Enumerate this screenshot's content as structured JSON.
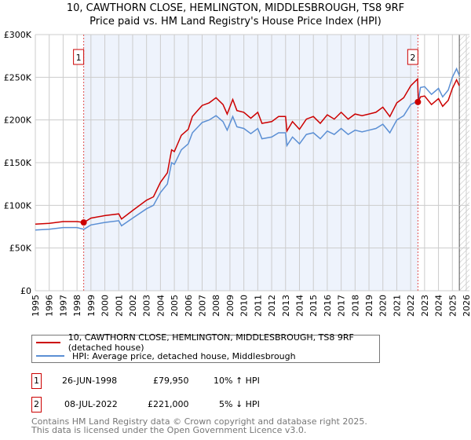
{
  "title": "10, CAWTHORN CLOSE, HEMLINGTON, MIDDLESBROUGH, TS8 9RF",
  "subtitle": "Price paid vs. HM Land Registry's House Price Index (HPI)",
  "colors": {
    "property": "#cc0000",
    "hpi": "#5b8fd4",
    "shade": "#eef3fc",
    "grid": "#cccccc"
  },
  "chart_data": {
    "type": "line",
    "title": "Price paid vs. HM Land Registry's House Price Index (HPI)",
    "xlim": [
      1995,
      2026
    ],
    "ylim": [
      0,
      300000
    ],
    "yticks": [
      {
        "v": 0,
        "l": "£0"
      },
      {
        "v": 50000,
        "l": "£50K"
      },
      {
        "v": 100000,
        "l": "£100K"
      },
      {
        "v": 150000,
        "l": "£150K"
      },
      {
        "v": 200000,
        "l": "£200K"
      },
      {
        "v": 250000,
        "l": "£250K"
      },
      {
        "v": 300000,
        "l": "£300K"
      }
    ],
    "xticks": [
      "1995",
      "1996",
      "1997",
      "1998",
      "1999",
      "2000",
      "2001",
      "2002",
      "2003",
      "2004",
      "2005",
      "2006",
      "2007",
      "2008",
      "2009",
      "2010",
      "2011",
      "2012",
      "2013",
      "2014",
      "2015",
      "2016",
      "2017",
      "2018",
      "2019",
      "2020",
      "2021",
      "2022",
      "2023",
      "2024",
      "2025",
      "2026"
    ],
    "x": [
      1995,
      1996,
      1997,
      1998,
      1998.5,
      1999,
      2000,
      2001,
      2001.2,
      2002,
      2003,
      2003.5,
      2004,
      2004.5,
      2004.8,
      2005,
      2005.5,
      2006,
      2006.3,
      2007,
      2007.5,
      2008,
      2008.5,
      2008.8,
      2009.2,
      2009.5,
      2010,
      2010.5,
      2011,
      2011.3,
      2012,
      2012.5,
      2013,
      2013.1,
      2013.5,
      2014,
      2014.5,
      2015,
      2015.5,
      2016,
      2016.5,
      2017,
      2017.5,
      2018,
      2018.5,
      2019,
      2019.5,
      2020,
      2020.5,
      2021,
      2021.5,
      2022,
      2022.5,
      2022.55,
      2022.7,
      2023,
      2023.5,
      2024,
      2024.3,
      2024.7,
      2025,
      2025.3,
      2025.5
    ],
    "series": [
      {
        "name": "10, CAWTHORN CLOSE, HEMLINGTON, MIDDLESBROUGH, TS8 9RF (detached house)",
        "values": [
          78,
          79,
          81,
          81,
          79.95,
          85,
          88,
          90,
          84,
          94,
          106,
          110,
          127,
          138,
          165,
          163,
          182,
          189,
          204,
          217,
          220,
          226,
          218,
          207,
          224,
          211,
          209,
          202,
          209,
          196,
          198,
          204,
          204,
          187,
          198,
          189,
          201,
          204,
          196,
          206,
          201,
          209,
          201,
          207,
          205,
          207,
          209,
          215,
          204,
          220,
          226,
          240,
          248,
          221,
          227,
          228,
          218,
          225,
          216,
          223,
          237,
          247,
          240
        ]
      },
      {
        "name": "HPI: Average price, detached house, Middlesbrough",
        "values": [
          71,
          72,
          74,
          74,
          72,
          77,
          80,
          82,
          76,
          85,
          96,
          100,
          115,
          125,
          150,
          148,
          165,
          172,
          185,
          197,
          200,
          205,
          198,
          188,
          204,
          192,
          190,
          184,
          190,
          178,
          180,
          185,
          185,
          170,
          180,
          172,
          183,
          185,
          178,
          187,
          183,
          190,
          183,
          188,
          186,
          188,
          190,
          195,
          185,
          200,
          205,
          218,
          222,
          222,
          238,
          239,
          230,
          237,
          227,
          235,
          250,
          260,
          252
        ]
      }
    ],
    "value_unit": "£ thousands",
    "shaded_range": [
      1998.48,
      2022.52
    ],
    "forecast_hatch_from": 2025.5,
    "sales": [
      {
        "label": "1",
        "x": 1998.48,
        "value": 79950
      },
      {
        "label": "2",
        "x": 2022.52,
        "value": 221000
      }
    ]
  },
  "legend": {
    "property": "10, CAWTHORN CLOSE, HEMLINGTON, MIDDLESBROUGH, TS8 9RF (detached house)",
    "hpi": "HPI: Average price, detached house, Middlesbrough"
  },
  "transactions": [
    {
      "num": "1",
      "date": "26-JUN-1998",
      "price": "£79,950",
      "hpi": "10% ↑ HPI"
    },
    {
      "num": "2",
      "date": "08-JUL-2022",
      "price": "£221,000",
      "hpi": "5% ↓ HPI"
    }
  ],
  "footer": {
    "line1": "Contains HM Land Registry data © Crown copyright and database right 2025.",
    "line2": "This data is licensed under the Open Government Licence v3.0."
  }
}
